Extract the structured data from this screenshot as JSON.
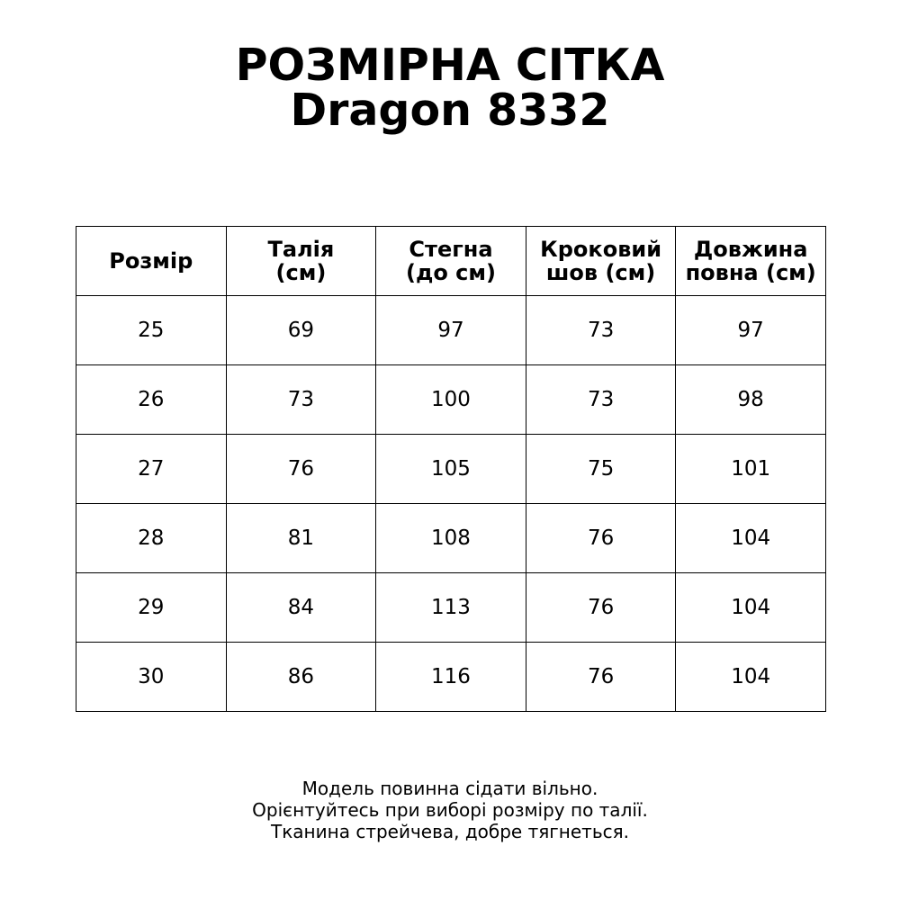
{
  "title": {
    "line1": "РОЗМІРНА СІТКА",
    "line2": "Dragon 8332"
  },
  "table": {
    "headers": [
      [
        "Розмір"
      ],
      [
        "Талія",
        "(см)"
      ],
      [
        "Стегна",
        "(до см)"
      ],
      [
        "Кроковий",
        "шов (см)"
      ],
      [
        "Довжина",
        "повна (см)"
      ]
    ],
    "rows": [
      [
        "25",
        "69",
        "97",
        "73",
        "97"
      ],
      [
        "26",
        "73",
        "100",
        "73",
        "98"
      ],
      [
        "27",
        "76",
        "105",
        "75",
        "101"
      ],
      [
        "28",
        "81",
        "108",
        "76",
        "104"
      ],
      [
        "29",
        "84",
        "113",
        "76",
        "104"
      ],
      [
        "30",
        "86",
        "116",
        "76",
        "104"
      ]
    ]
  },
  "footer": [
    "Модель повинна сідати вільно.",
    "Орієнтуйтесь при виборі розміру по талії.",
    "Тканина стрейчева, добре тягнеться."
  ]
}
